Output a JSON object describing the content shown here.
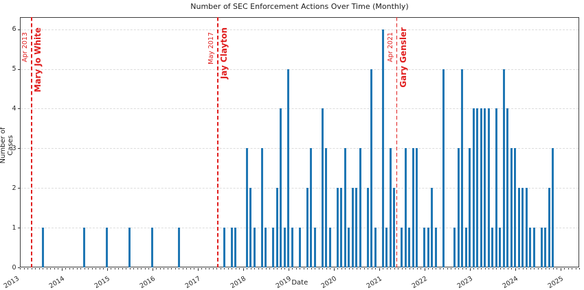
{
  "title": "Number of SEC Enforcement Actions Over Time (Monthly)",
  "xlabel": "Date",
  "ylabel": "Number of Cases",
  "colors": {
    "bar": "#1f77b4",
    "event": "#e01e1e",
    "grid": "#dcdcdc",
    "spine": "#3d3d3d",
    "text": "#262626"
  },
  "chart_data": {
    "type": "bar",
    "title": "Number of SEC Enforcement Actions Over Time (Monthly)",
    "xlabel": "Date",
    "ylabel": "Number of Cases",
    "ylim": [
      0,
      6.3
    ],
    "grid": "horizontal-dashed",
    "legend": "none",
    "x_tick_labels": [
      "2013",
      "2014",
      "2015",
      "2016",
      "2017",
      "2018",
      "2019",
      "2020",
      "2021",
      "2022",
      "2023",
      "2024",
      "2025"
    ],
    "y_tick_labels": [
      "0",
      "1",
      "2",
      "3",
      "4",
      "5",
      "6"
    ],
    "bar_color": "#1f77b4",
    "points": [
      [
        "2013-08",
        1
      ],
      [
        "2014-07",
        1
      ],
      [
        "2015-01",
        1
      ],
      [
        "2015-07",
        1
      ],
      [
        "2016-01",
        1
      ],
      [
        "2016-08",
        1
      ],
      [
        "2017-08",
        1
      ],
      [
        "2017-10",
        1
      ],
      [
        "2017-11",
        1
      ],
      [
        "2018-02",
        3
      ],
      [
        "2018-03",
        2
      ],
      [
        "2018-04",
        1
      ],
      [
        "2018-06",
        3
      ],
      [
        "2018-07",
        1
      ],
      [
        "2018-09",
        1
      ],
      [
        "2018-10",
        2
      ],
      [
        "2018-11",
        4
      ],
      [
        "2018-12",
        1
      ],
      [
        "2019-01",
        5
      ],
      [
        "2019-02",
        1
      ],
      [
        "2019-04",
        1
      ],
      [
        "2019-06",
        2
      ],
      [
        "2019-07",
        3
      ],
      [
        "2019-08",
        1
      ],
      [
        "2019-10",
        4
      ],
      [
        "2019-11",
        3
      ],
      [
        "2019-12",
        1
      ],
      [
        "2020-02",
        2
      ],
      [
        "2020-03",
        2
      ],
      [
        "2020-04",
        3
      ],
      [
        "2020-05",
        1
      ],
      [
        "2020-06",
        2
      ],
      [
        "2020-07",
        2
      ],
      [
        "2020-08",
        3
      ],
      [
        "2020-10",
        2
      ],
      [
        "2020-11",
        5
      ],
      [
        "2020-12",
        1
      ],
      [
        "2021-02",
        6
      ],
      [
        "2021-03",
        1
      ],
      [
        "2021-04",
        3
      ],
      [
        "2021-05",
        2
      ],
      [
        "2021-07",
        1
      ],
      [
        "2021-08",
        3
      ],
      [
        "2021-09",
        1
      ],
      [
        "2021-10",
        3
      ],
      [
        "2021-11",
        3
      ],
      [
        "2022-01",
        1
      ],
      [
        "2022-02",
        1
      ],
      [
        "2022-03",
        2
      ],
      [
        "2022-04",
        1
      ],
      [
        "2022-06",
        5
      ],
      [
        "2022-09",
        1
      ],
      [
        "2022-10",
        3
      ],
      [
        "2022-11",
        5
      ],
      [
        "2022-12",
        1
      ],
      [
        "2023-01",
        3
      ],
      [
        "2023-02",
        4
      ],
      [
        "2023-03",
        4
      ],
      [
        "2023-04",
        4
      ],
      [
        "2023-05",
        4
      ],
      [
        "2023-06",
        4
      ],
      [
        "2023-07",
        1
      ],
      [
        "2023-08",
        4
      ],
      [
        "2023-09",
        1
      ],
      [
        "2023-10",
        5
      ],
      [
        "2023-11",
        4
      ],
      [
        "2023-12",
        3
      ],
      [
        "2024-01",
        3
      ],
      [
        "2024-02",
        2
      ],
      [
        "2024-03",
        2
      ],
      [
        "2024-04",
        2
      ],
      [
        "2024-05",
        1
      ],
      [
        "2024-06",
        1
      ],
      [
        "2024-08",
        1
      ],
      [
        "2024-09",
        1
      ],
      [
        "2024-10",
        2
      ],
      [
        "2024-11",
        3
      ]
    ],
    "events": [
      {
        "date_label": "Apr 2013",
        "name": "Mary Jo White",
        "month_pos": 3.98
      },
      {
        "date_label": "May 2017",
        "name": "Jay Clayton",
        "month_pos": 53.3
      },
      {
        "date_label": "Apr 2021",
        "name": "Gary Gensler",
        "month_pos": 100.7
      }
    ]
  }
}
